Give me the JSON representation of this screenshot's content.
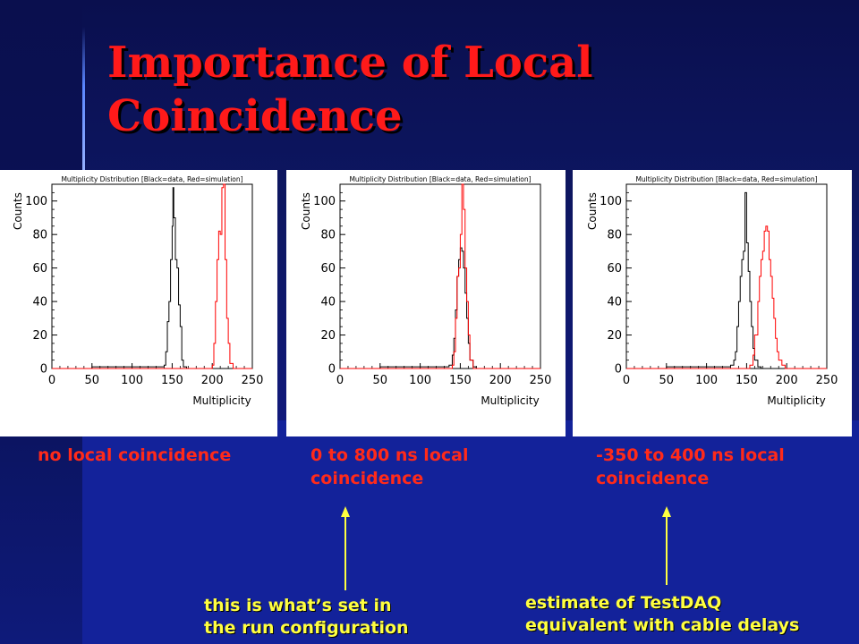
{
  "slide": {
    "title": "Importance of Local Coincidence",
    "colors": {
      "title": "#ff1a1a",
      "captions": "#ff2a1a",
      "notes": "#ffff40",
      "arrows": "#ffff40",
      "data": "#000000",
      "simulation": "#ff0000"
    }
  },
  "plots": [
    {
      "caption": "no local coincidence",
      "chart_data": {
        "type": "histogram",
        "title": "Multiplicity Distribution [Black=data, Red=simulation]",
        "xlabel": "Multiplicity",
        "ylabel": "Counts",
        "xlim": [
          0,
          250
        ],
        "ylim": [
          0,
          110
        ],
        "xticks": [
          "0",
          "50",
          "100",
          "150",
          "200",
          "250"
        ],
        "yticks": [
          "0",
          "20",
          "40",
          "60",
          "80",
          "100"
        ],
        "series": [
          {
            "name": "Black=data",
            "color": "#000000",
            "points": [
              [
                0,
                0
              ],
              [
                50,
                1
              ],
              [
                120,
                1
              ],
              [
                130,
                1
              ],
              [
                140,
                2
              ],
              [
                142,
                10
              ],
              [
                144,
                28
              ],
              [
                146,
                40
              ],
              [
                148,
                65
              ],
              [
                150,
                85
              ],
              [
                151,
                108
              ],
              [
                152,
                90
              ],
              [
                154,
                65
              ],
              [
                156,
                60
              ],
              [
                158,
                38
              ],
              [
                160,
                25
              ],
              [
                162,
                5
              ],
              [
                164,
                1
              ],
              [
                168,
                0
              ],
              [
                250,
                0
              ]
            ]
          },
          {
            "name": "Red=simulation",
            "color": "#ff0000",
            "points": [
              [
                0,
                0
              ],
              [
                196,
                0
              ],
              [
                200,
                2
              ],
              [
                202,
                15
              ],
              [
                204,
                40
              ],
              [
                206,
                65
              ],
              [
                208,
                82
              ],
              [
                210,
                80
              ],
              [
                212,
                108
              ],
              [
                214,
                110
              ],
              [
                216,
                65
              ],
              [
                218,
                30
              ],
              [
                220,
                15
              ],
              [
                222,
                3
              ],
              [
                226,
                0
              ],
              [
                250,
                0
              ]
            ]
          }
        ]
      }
    },
    {
      "caption": "0 to 800 ns local coincidence",
      "chart_data": {
        "type": "histogram",
        "title": "Multiplicity Distribution [Black=data, Red=simulation]",
        "xlabel": "Multiplicity",
        "ylabel": "Counts",
        "xlim": [
          0,
          250
        ],
        "ylim": [
          0,
          110
        ],
        "xticks": [
          "0",
          "50",
          "100",
          "150",
          "200",
          "250"
        ],
        "yticks": [
          "0",
          "20",
          "40",
          "60",
          "80",
          "100"
        ],
        "series": [
          {
            "name": "Black=data",
            "color": "#000000",
            "points": [
              [
                0,
                0
              ],
              [
                50,
                1
              ],
              [
                120,
                1
              ],
              [
                130,
                1
              ],
              [
                136,
                2
              ],
              [
                140,
                8
              ],
              [
                142,
                18
              ],
              [
                144,
                35
              ],
              [
                146,
                55
              ],
              [
                148,
                65
              ],
              [
                150,
                72
              ],
              [
                152,
                70
              ],
              [
                154,
                60
              ],
              [
                156,
                45
              ],
              [
                158,
                30
              ],
              [
                160,
                15
              ],
              [
                162,
                5
              ],
              [
                166,
                1
              ],
              [
                170,
                0
              ],
              [
                250,
                0
              ]
            ]
          },
          {
            "name": "Red=simulation",
            "color": "#ff0000",
            "points": [
              [
                0,
                0
              ],
              [
                136,
                0
              ],
              [
                140,
                2
              ],
              [
                142,
                10
              ],
              [
                144,
                30
              ],
              [
                146,
                55
              ],
              [
                148,
                60
              ],
              [
                150,
                80
              ],
              [
                152,
                110
              ],
              [
                154,
                95
              ],
              [
                156,
                60
              ],
              [
                158,
                40
              ],
              [
                160,
                20
              ],
              [
                162,
                5
              ],
              [
                166,
                0
              ],
              [
                250,
                0
              ]
            ]
          }
        ]
      }
    },
    {
      "caption": "-350 to 400 ns local coincidence",
      "chart_data": {
        "type": "histogram",
        "title": "Multiplicity Distribution [Black=data, Red=simulation]",
        "xlabel": "Multiplicity",
        "ylabel": "Counts",
        "xlim": [
          0,
          250
        ],
        "ylim": [
          0,
          110
        ],
        "xticks": [
          "0",
          "50",
          "100",
          "150",
          "200",
          "250"
        ],
        "yticks": [
          "0",
          "20",
          "40",
          "60",
          "80",
          "100"
        ],
        "series": [
          {
            "name": "Black=data",
            "color": "#000000",
            "points": [
              [
                0,
                0
              ],
              [
                50,
                1
              ],
              [
                120,
                1
              ],
              [
                130,
                2
              ],
              [
                134,
                5
              ],
              [
                136,
                10
              ],
              [
                138,
                25
              ],
              [
                140,
                40
              ],
              [
                142,
                55
              ],
              [
                144,
                65
              ],
              [
                146,
                70
              ],
              [
                148,
                105
              ],
              [
                150,
                75
              ],
              [
                152,
                58
              ],
              [
                154,
                40
              ],
              [
                156,
                25
              ],
              [
                158,
                12
              ],
              [
                160,
                5
              ],
              [
                164,
                1
              ],
              [
                168,
                0
              ],
              [
                250,
                0
              ]
            ]
          },
          {
            "name": "Red=simulation",
            "color": "#ff0000",
            "points": [
              [
                0,
                0
              ],
              [
                150,
                0
              ],
              [
                154,
                2
              ],
              [
                158,
                8
              ],
              [
                160,
                20
              ],
              [
                164,
                40
              ],
              [
                166,
                55
              ],
              [
                168,
                65
              ],
              [
                170,
                70
              ],
              [
                172,
                82
              ],
              [
                174,
                85
              ],
              [
                176,
                82
              ],
              [
                178,
                65
              ],
              [
                180,
                55
              ],
              [
                182,
                42
              ],
              [
                184,
                30
              ],
              [
                186,
                18
              ],
              [
                188,
                10
              ],
              [
                190,
                5
              ],
              [
                194,
                2
              ],
              [
                198,
                0
              ],
              [
                250,
                0
              ]
            ]
          }
        ]
      }
    }
  ],
  "notes": [
    {
      "text_line1": "this is what’s set in",
      "text_line2": "the run configuration"
    },
    {
      "text_line1": "estimate of TestDAQ",
      "text_line2": "equivalent with cable delays"
    }
  ]
}
